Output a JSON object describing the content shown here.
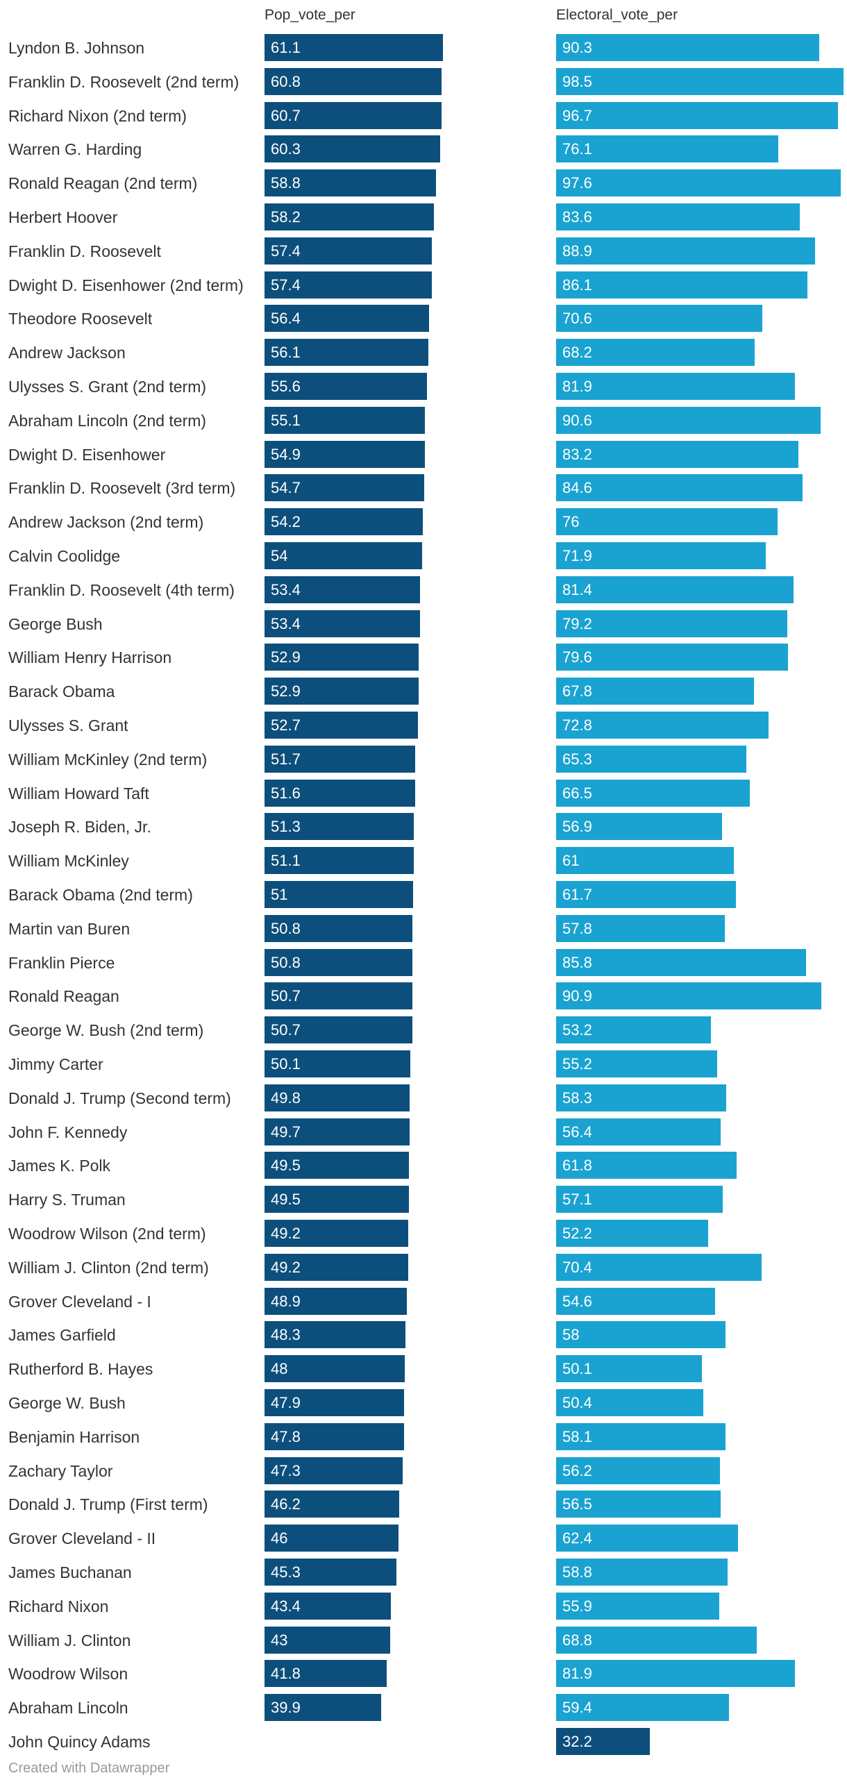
{
  "chart_data": {
    "type": "bar",
    "columns": [
      "Pop_vote_per",
      "Electoral_vote_per"
    ],
    "rows": [
      {
        "name": "Lyndon B. Johnson",
        "pop": 61.1,
        "ev": 90.3
      },
      {
        "name": "Franklin D. Roosevelt (2nd term)",
        "pop": 60.8,
        "ev": 98.5
      },
      {
        "name": "Richard Nixon (2nd term)",
        "pop": 60.7,
        "ev": 96.7
      },
      {
        "name": "Warren G. Harding",
        "pop": 60.3,
        "ev": 76.1
      },
      {
        "name": "Ronald Reagan (2nd term)",
        "pop": 58.8,
        "ev": 97.6
      },
      {
        "name": "Herbert Hoover",
        "pop": 58.2,
        "ev": 83.6
      },
      {
        "name": "Franklin D. Roosevelt",
        "pop": 57.4,
        "ev": 88.9
      },
      {
        "name": "Dwight D. Eisenhower (2nd term)",
        "pop": 57.4,
        "ev": 86.1
      },
      {
        "name": "Theodore Roosevelt",
        "pop": 56.4,
        "ev": 70.6
      },
      {
        "name": "Andrew Jackson",
        "pop": 56.1,
        "ev": 68.2
      },
      {
        "name": "Ulysses S. Grant (2nd term)",
        "pop": 55.6,
        "ev": 81.9
      },
      {
        "name": "Abraham Lincoln (2nd term)",
        "pop": 55.1,
        "ev": 90.6
      },
      {
        "name": "Dwight D. Eisenhower",
        "pop": 54.9,
        "ev": 83.2
      },
      {
        "name": "Franklin D. Roosevelt (3rd term)",
        "pop": 54.7,
        "ev": 84.6
      },
      {
        "name": "Andrew Jackson (2nd term)",
        "pop": 54.2,
        "ev": 76
      },
      {
        "name": "Calvin Coolidge",
        "pop": 54,
        "ev": 71.9
      },
      {
        "name": "Franklin D. Roosevelt (4th term)",
        "pop": 53.4,
        "ev": 81.4
      },
      {
        "name": "George Bush",
        "pop": 53.4,
        "ev": 79.2
      },
      {
        "name": "William Henry Harrison",
        "pop": 52.9,
        "ev": 79.6
      },
      {
        "name": "Barack Obama",
        "pop": 52.9,
        "ev": 67.8
      },
      {
        "name": "Ulysses S. Grant",
        "pop": 52.7,
        "ev": 72.8
      },
      {
        "name": "William McKinley (2nd term)",
        "pop": 51.7,
        "ev": 65.3
      },
      {
        "name": "William Howard Taft",
        "pop": 51.6,
        "ev": 66.5
      },
      {
        "name": "Joseph R. Biden, Jr.",
        "pop": 51.3,
        "ev": 56.9
      },
      {
        "name": "William McKinley",
        "pop": 51.1,
        "ev": 61
      },
      {
        "name": "Barack Obama (2nd term)",
        "pop": 51,
        "ev": 61.7
      },
      {
        "name": "Martin van Buren",
        "pop": 50.8,
        "ev": 57.8
      },
      {
        "name": "Franklin Pierce",
        "pop": 50.8,
        "ev": 85.8
      },
      {
        "name": "Ronald Reagan",
        "pop": 50.7,
        "ev": 90.9
      },
      {
        "name": "George W. Bush (2nd term)",
        "pop": 50.7,
        "ev": 53.2
      },
      {
        "name": "Jimmy Carter",
        "pop": 50.1,
        "ev": 55.2
      },
      {
        "name": "Donald J. Trump (Second term)",
        "pop": 49.8,
        "ev": 58.3
      },
      {
        "name": "John F. Kennedy",
        "pop": 49.7,
        "ev": 56.4
      },
      {
        "name": "James K. Polk",
        "pop": 49.5,
        "ev": 61.8
      },
      {
        "name": "Harry S. Truman",
        "pop": 49.5,
        "ev": 57.1
      },
      {
        "name": "Woodrow Wilson (2nd term)",
        "pop": 49.2,
        "ev": 52.2
      },
      {
        "name": "William J. Clinton (2nd term)",
        "pop": 49.2,
        "ev": 70.4
      },
      {
        "name": "Grover Cleveland - I",
        "pop": 48.9,
        "ev": 54.6
      },
      {
        "name": "James Garfield",
        "pop": 48.3,
        "ev": 58
      },
      {
        "name": "Rutherford B. Hayes",
        "pop": 48,
        "ev": 50.1
      },
      {
        "name": "George W. Bush",
        "pop": 47.9,
        "ev": 50.4
      },
      {
        "name": "Benjamin Harrison",
        "pop": 47.8,
        "ev": 58.1
      },
      {
        "name": "Zachary Taylor",
        "pop": 47.3,
        "ev": 56.2
      },
      {
        "name": "Donald J. Trump (First term)",
        "pop": 46.2,
        "ev": 56.5
      },
      {
        "name": "Grover Cleveland - II",
        "pop": 46,
        "ev": 62.4
      },
      {
        "name": "James Buchanan",
        "pop": 45.3,
        "ev": 58.8
      },
      {
        "name": "Richard Nixon",
        "pop": 43.4,
        "ev": 55.9
      },
      {
        "name": "William J. Clinton",
        "pop": 43,
        "ev": 68.8
      },
      {
        "name": "Woodrow Wilson",
        "pop": 41.8,
        "ev": 81.9
      },
      {
        "name": "Abraham Lincoln",
        "pop": 39.9,
        "ev": 59.4
      },
      {
        "name": "John Quincy Adams",
        "pop": null,
        "ev": 32.2
      }
    ],
    "colors": {
      "pop": "#0d4f7c",
      "ev": "#1aa3d1",
      "ev_highlight": "#0d4f7c"
    },
    "highlight_ev_row": "John Quincy Adams",
    "xlim": [
      0,
      100
    ]
  },
  "footer": "Created with Datawrapper"
}
